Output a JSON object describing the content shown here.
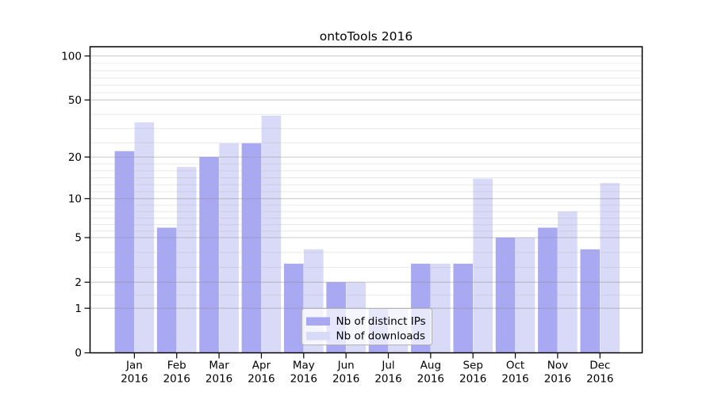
{
  "chart_data": {
    "type": "bar",
    "title": "ontoTools 2016",
    "categories": [
      {
        "month": "Jan",
        "year": "2016"
      },
      {
        "month": "Feb",
        "year": "2016"
      },
      {
        "month": "Mar",
        "year": "2016"
      },
      {
        "month": "Apr",
        "year": "2016"
      },
      {
        "month": "May",
        "year": "2016"
      },
      {
        "month": "Jun",
        "year": "2016"
      },
      {
        "month": "Jul",
        "year": "2016"
      },
      {
        "month": "Aug",
        "year": "2016"
      },
      {
        "month": "Sep",
        "year": "2016"
      },
      {
        "month": "Oct",
        "year": "2016"
      },
      {
        "month": "Nov",
        "year": "2016"
      },
      {
        "month": "Dec",
        "year": "2016"
      }
    ],
    "series": [
      {
        "name": "Nb of distinct IPs",
        "color": "#a9a9f3",
        "values": [
          22,
          6,
          20,
          25,
          3,
          2,
          1,
          3,
          3,
          5,
          6,
          4
        ]
      },
      {
        "name": "Nb of downloads",
        "color": "#d9d9f8",
        "values": [
          35,
          17,
          25,
          39,
          4,
          2,
          1,
          3,
          14,
          5,
          8,
          13
        ]
      }
    ],
    "y_axis": {
      "ticks": [
        0,
        1,
        2,
        5,
        10,
        20,
        50,
        100
      ],
      "scale": "mirrorLog (position proportional to log10(1+v))",
      "minor_divisions": [
        1,
        2,
        3,
        6,
        6,
        4,
        6
      ]
    },
    "xlabel": "",
    "ylabel": "",
    "grid": {
      "major": true,
      "minor": true,
      "drawn_over_bars": true
    },
    "legend": {
      "position": "bottom-center-inside"
    },
    "colors": {
      "axis": "#000000",
      "major_grid": "#cccccc",
      "minor_grid": "#eaeaea",
      "legend_border": "#b3b3b3",
      "legend_background": "rgba(255,255,255,0.72)"
    }
  }
}
